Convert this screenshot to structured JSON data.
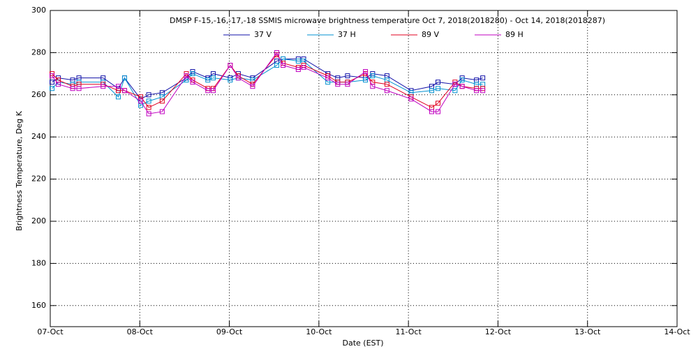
{
  "chart_data": {
    "type": "line",
    "title": "DMSP F-15,-16,-17,-18 SSMIS microwave brightness temperature Oct  7, 2018(2018280) - Oct 14, 2018(2018287)",
    "x_label": "Date (EST)",
    "y_label": "Brightness Temperature, Deg K",
    "x": [
      0.02,
      0.09,
      0.25,
      0.32,
      0.59,
      0.76,
      0.83,
      1.01,
      1.1,
      1.25,
      1.52,
      1.59,
      1.76,
      1.82,
      2.01,
      2.1,
      2.26,
      2.53,
      2.6,
      2.77,
      2.83,
      3.1,
      3.21,
      3.32,
      3.52,
      3.6,
      3.76,
      4.03,
      4.26,
      4.33,
      4.52,
      4.6,
      4.76,
      4.83
    ],
    "series": [
      {
        "name": "37 V",
        "color": "#1010a8",
        "values": [
          266,
          268,
          267,
          268,
          268,
          263,
          268,
          258,
          260,
          261,
          268,
          271,
          268,
          270,
          268,
          270,
          268,
          276,
          277,
          277,
          277,
          270,
          268,
          269,
          268,
          270,
          269,
          262,
          264,
          266,
          265,
          268,
          267,
          268
        ]
      },
      {
        "name": "37 H",
        "color": "#0090d0",
        "values": [
          263,
          266,
          265,
          266,
          266,
          259,
          268,
          255,
          257,
          259,
          267,
          270,
          267,
          268,
          267,
          268,
          267,
          274,
          277,
          276,
          276,
          266,
          266,
          266,
          267,
          269,
          267,
          261,
          262,
          263,
          262,
          267,
          265,
          265
        ]
      },
      {
        "name": "89 V",
        "color": "#e00020",
        "values": [
          270,
          267,
          264,
          265,
          265,
          262,
          262,
          259,
          254,
          257,
          270,
          267,
          263,
          263,
          274,
          269,
          265,
          279,
          275,
          273,
          274,
          269,
          266,
          266,
          270,
          266,
          265,
          259,
          254,
          256,
          266,
          264,
          263,
          263
        ]
      },
      {
        "name": "89 H",
        "color": "#c000c0",
        "values": [
          269,
          265,
          263,
          263,
          264,
          264,
          262,
          257,
          251,
          252,
          269,
          266,
          262,
          262,
          274,
          268,
          264,
          280,
          274,
          272,
          273,
          268,
          265,
          265,
          271,
          264,
          262,
          258,
          252,
          252,
          265,
          264,
          262,
          262
        ]
      }
    ],
    "xlim": [
      0,
      7
    ],
    "xticks": [
      {
        "value": 0,
        "label": "07-Oct"
      },
      {
        "value": 1,
        "label": "08-Oct"
      },
      {
        "value": 2,
        "label": "09-Oct"
      },
      {
        "value": 3,
        "label": "10-Oct"
      },
      {
        "value": 4,
        "label": "11-Oct"
      },
      {
        "value": 5,
        "label": "12-Oct"
      },
      {
        "value": 6,
        "label": "13-Oct"
      },
      {
        "value": 7,
        "label": "14-Oct"
      }
    ],
    "ylim": [
      150,
      300
    ],
    "yticks": [
      160,
      180,
      200,
      220,
      240,
      260,
      280,
      300
    ],
    "grid": true
  }
}
